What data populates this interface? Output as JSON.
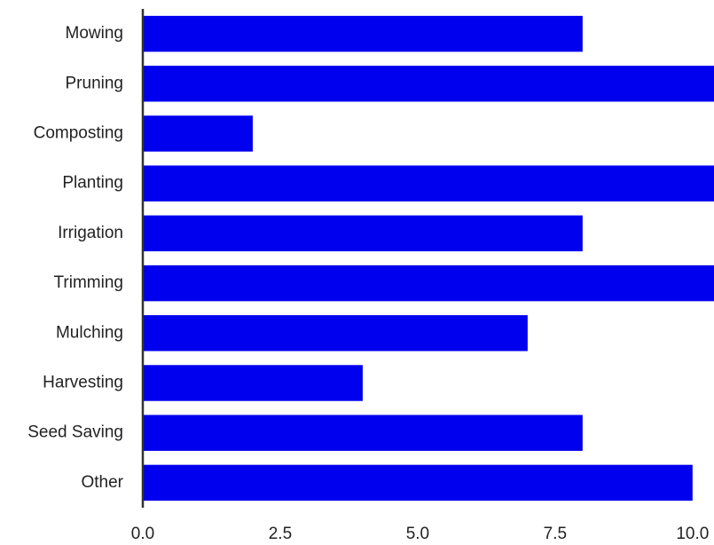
{
  "chart_data": {
    "type": "barh",
    "categories": [
      "Mowing",
      "Pruning",
      "Composting",
      "Planting",
      "Irrigation",
      "Trimming",
      "Mulching",
      "Harvesting",
      "Seed Saving",
      "Other"
    ],
    "values": [
      8,
      11,
      2,
      11,
      8,
      11,
      7,
      4,
      8,
      10
    ],
    "color": "#0000ee",
    "xlim": [
      0,
      10.39
    ],
    "xticks": [
      {
        "value": 0,
        "label": "0.0"
      },
      {
        "value": 2.5,
        "label": "2.5"
      },
      {
        "value": 5,
        "label": "5.0"
      },
      {
        "value": 7.5,
        "label": "7.5"
      },
      {
        "value": 10,
        "label": "10.0"
      }
    ],
    "grid": false
  }
}
